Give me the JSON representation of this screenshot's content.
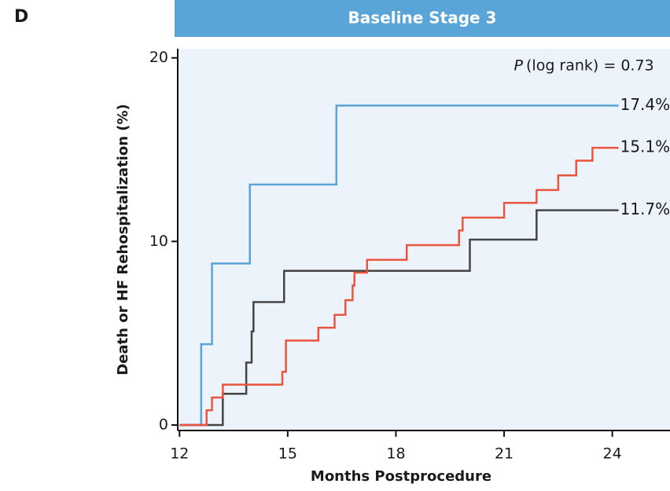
{
  "panel": "D",
  "chart_data": {
    "type": "step",
    "title": "Baseline Stage 3",
    "annotation": {
      "italic": "P",
      "text": "(log rank) = 0.73"
    },
    "x_label": "Months Postprocedure",
    "y_label": "Death or HF Rehospitalization (%)",
    "xlim": [
      11.95,
      25.6
    ],
    "xticks": [
      12,
      15,
      18,
      21,
      24
    ],
    "ylim": [
      -0.3,
      20.5
    ],
    "yticks": [
      0,
      10,
      20
    ],
    "background": "#edf3fb",
    "series": [
      {
        "color": "#5aa5d8",
        "x": [
          12,
          12.6,
          12.9,
          13.95,
          16.35,
          24
        ],
        "values": [
          0,
          4.4,
          8.8,
          13.1,
          17.4,
          17.4
        ],
        "value_labels": [
          null,
          null,
          null,
          null,
          null,
          "17.4%"
        ]
      },
      {
        "color": "#444444",
        "x": [
          12,
          13.2,
          13.85,
          14.0,
          14.05,
          14.9,
          20.05,
          21.9,
          24
        ],
        "values": [
          0,
          1.7,
          3.4,
          5.1,
          6.7,
          8.4,
          10.1,
          11.7,
          11.7
        ],
        "value_labels": [
          null,
          null,
          null,
          null,
          null,
          null,
          null,
          null,
          "11.7%"
        ]
      },
      {
        "color": "#e9553f",
        "x": [
          12,
          12.75,
          12.9,
          13.2,
          14.85,
          14.95,
          15.85,
          16.3,
          16.6,
          16.8,
          16.85,
          17.2,
          18.3,
          19.75,
          19.85,
          21.0,
          21.9,
          22.5,
          23.0,
          23.45,
          24
        ],
        "values": [
          0,
          0.8,
          1.5,
          2.2,
          2.9,
          4.6,
          5.3,
          6.0,
          6.8,
          7.6,
          8.3,
          9.0,
          9.8,
          10.6,
          11.3,
          12.1,
          12.8,
          13.6,
          14.4,
          15.1,
          15.1
        ],
        "value_labels": [
          null,
          null,
          null,
          null,
          null,
          null,
          null,
          null,
          null,
          null,
          null,
          null,
          null,
          null,
          null,
          null,
          null,
          null,
          null,
          null,
          "15.1%"
        ]
      }
    ]
  }
}
